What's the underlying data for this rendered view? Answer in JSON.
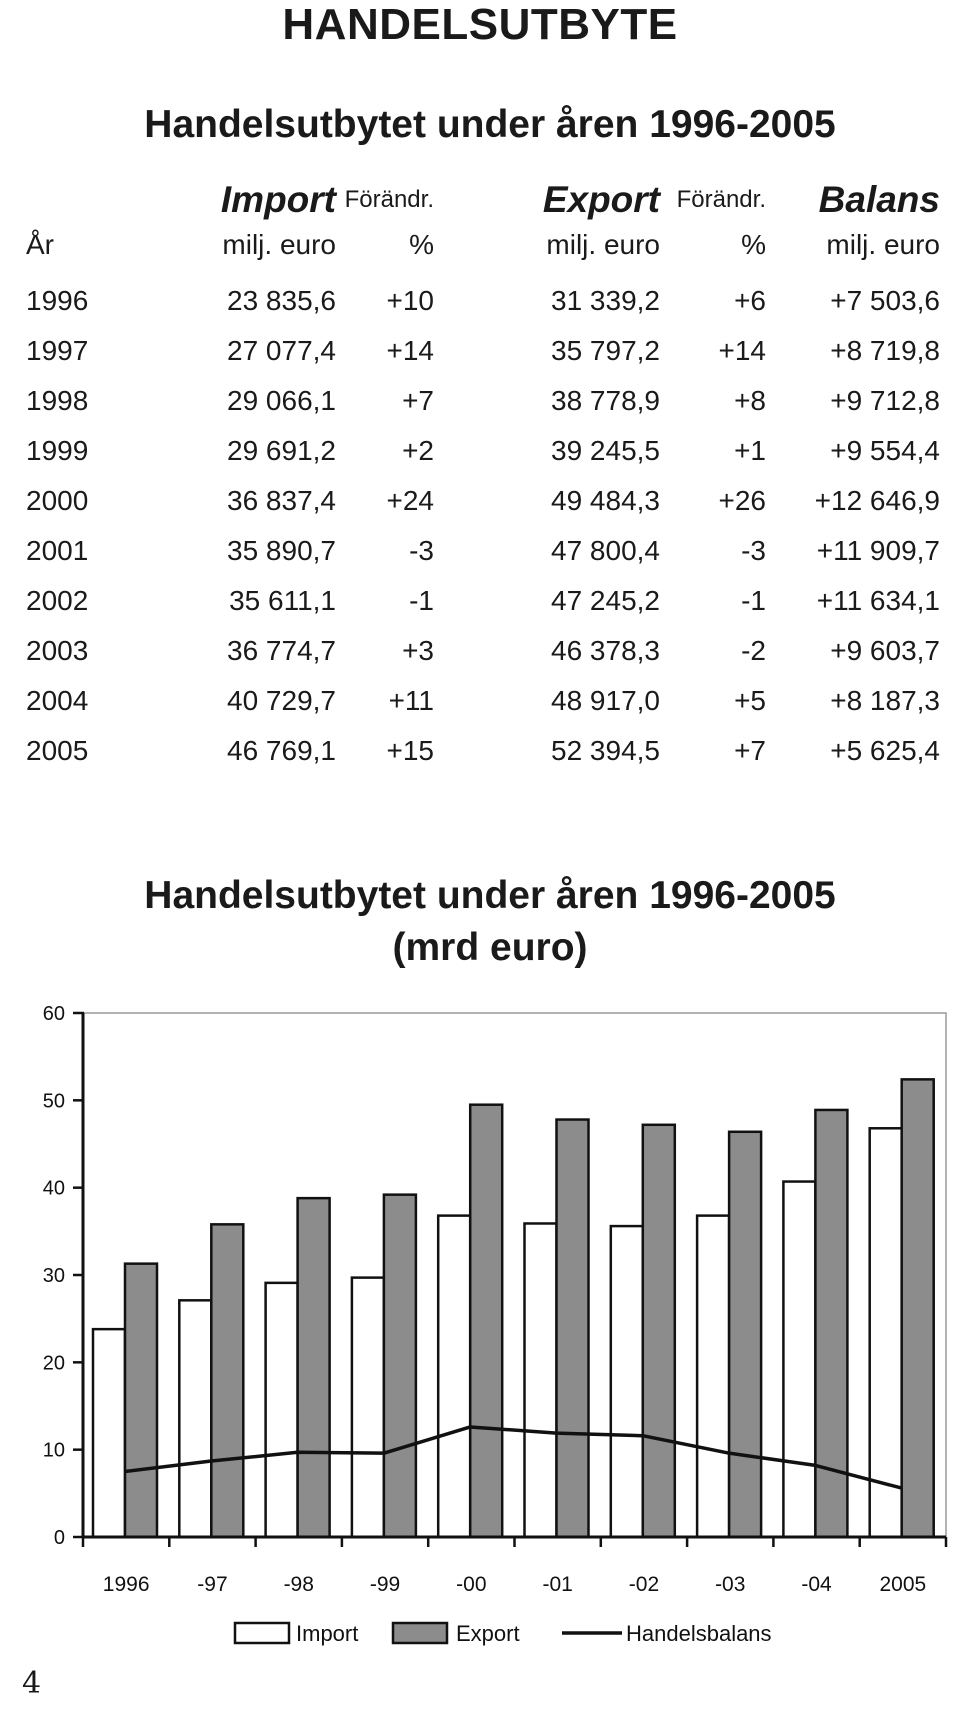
{
  "page": {
    "heading": "HANDELSUTBYTE",
    "page_number": "4"
  },
  "table": {
    "title": "Handelsutbytet under åren 1996-2005",
    "header1": {
      "year": "",
      "import": "Import",
      "import_change": "Förändr.",
      "export": "Export",
      "export_change": "Förändr.",
      "balance": "Balans"
    },
    "header2": {
      "year": "År",
      "import": "milj. euro",
      "import_change": "%",
      "export": "milj. euro",
      "export_change": "%",
      "balance": "milj. euro"
    },
    "rows": [
      {
        "year": "1996",
        "import": "23 835,6",
        "import_change": "+10",
        "export": "31 339,2",
        "export_change": "+6",
        "balance": "+7 503,6"
      },
      {
        "year": "1997",
        "import": "27 077,4",
        "import_change": "+14",
        "export": "35 797,2",
        "export_change": "+14",
        "balance": "+8 719,8"
      },
      {
        "year": "1998",
        "import": "29 066,1",
        "import_change": "+7",
        "export": "38 778,9",
        "export_change": "+8",
        "balance": "+9 712,8"
      },
      {
        "year": "1999",
        "import": "29 691,2",
        "import_change": "+2",
        "export": "39 245,5",
        "export_change": "+1",
        "balance": "+9 554,4"
      },
      {
        "year": "2000",
        "import": "36 837,4",
        "import_change": "+24",
        "export": "49 484,3",
        "export_change": "+26",
        "balance": "+12 646,9"
      },
      {
        "year": "2001",
        "import": "35 890,7",
        "import_change": "-3",
        "export": "47 800,4",
        "export_change": "-3",
        "balance": "+11 909,7"
      },
      {
        "year": "2002",
        "import": "35 611,1",
        "import_change": "-1",
        "export": "47 245,2",
        "export_change": "-1",
        "balance": "+11 634,1"
      },
      {
        "year": "2003",
        "import": "36 774,7",
        "import_change": "+3",
        "export": "46 378,3",
        "export_change": "-2",
        "balance": "+9 603,7"
      },
      {
        "year": "2004",
        "import": "40 729,7",
        "import_change": "+11",
        "export": "48 917,0",
        "export_change": "+5",
        "balance": "+8 187,3"
      },
      {
        "year": "2005",
        "import": "46 769,1",
        "import_change": "+15",
        "export": "52 394,5",
        "export_change": "+7",
        "balance": "+5 625,4"
      }
    ]
  },
  "chart_data": {
    "type": "bar",
    "title": "Handelsutbytet under åren 1996-2005",
    "subtitle": "(mrd euro)",
    "xlabel": "",
    "ylabel": "",
    "categories": [
      "1996",
      "-97",
      "-98",
      "-99",
      "-00",
      "-01",
      "-02",
      "-03",
      "-04",
      "2005"
    ],
    "ylim": [
      0,
      60
    ],
    "yticks": [
      "0",
      "10",
      "20",
      "30",
      "40",
      "50",
      "60"
    ],
    "grid": false,
    "legend_position": "bottom",
    "series": [
      {
        "name": "Import",
        "kind": "bar",
        "color": "#ffffff",
        "values": [
          23.8,
          27.1,
          29.1,
          29.7,
          36.8,
          35.9,
          35.6,
          36.8,
          40.7,
          46.8
        ]
      },
      {
        "name": "Export",
        "kind": "bar",
        "color": "#8c8c8c",
        "values": [
          31.3,
          35.8,
          38.8,
          39.2,
          49.5,
          47.8,
          47.2,
          46.4,
          48.9,
          52.4
        ]
      },
      {
        "name": "Handelsbalans",
        "kind": "line",
        "color": "#111111",
        "values": [
          7.5,
          8.7,
          9.7,
          9.6,
          12.6,
          11.9,
          11.6,
          9.6,
          8.2,
          5.6
        ]
      }
    ]
  }
}
